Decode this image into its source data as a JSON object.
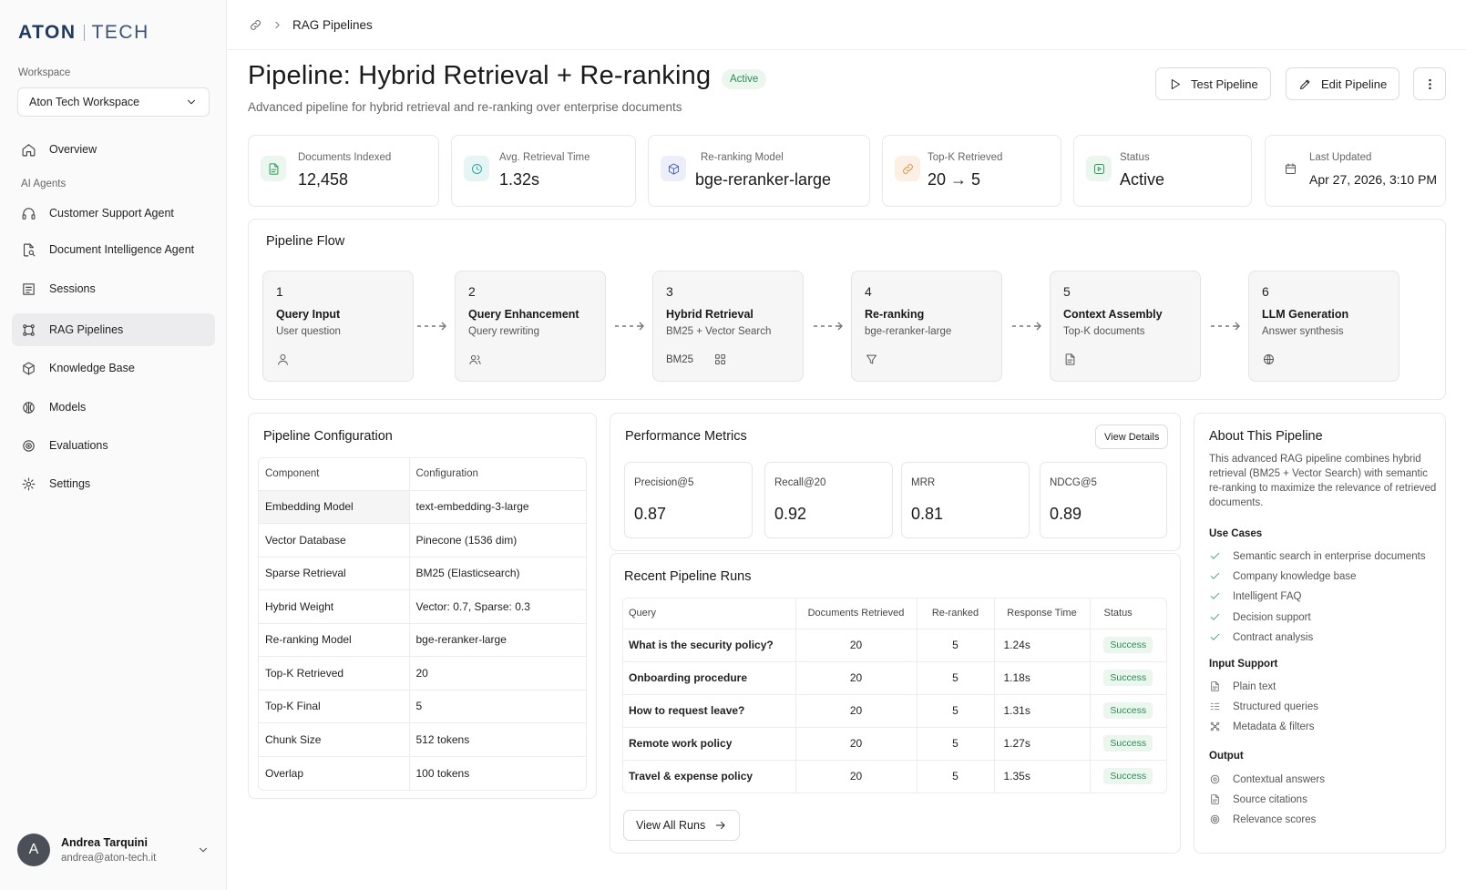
{
  "brand": {
    "part1": "ATON",
    "part2": "TECH",
    "color": "#1f3a5f"
  },
  "sidebar": {
    "workspace_label": "Workspace",
    "workspace_value": "Aton Tech Workspace",
    "overview": "Overview",
    "group_label": "AI Agents",
    "items": [
      {
        "label": "Customer Support Agent",
        "icon": "headset-icon"
      },
      {
        "label": "Document Intelligence Agent",
        "icon": "document-search-icon"
      },
      {
        "label": "Sessions",
        "icon": "sessions-icon"
      },
      {
        "label": "RAG Pipelines",
        "icon": "pipeline-icon",
        "active": true
      },
      {
        "label": "Knowledge Base",
        "icon": "cube-icon"
      },
      {
        "label": "Models",
        "icon": "brain-icon"
      },
      {
        "label": "Evaluations",
        "icon": "target-icon"
      },
      {
        "label": "Settings",
        "icon": "gear-icon"
      }
    ],
    "user": {
      "initial": "A",
      "name": "Andrea Tarquini",
      "email": "andrea@aton-tech.it"
    }
  },
  "breadcrumb": {
    "current": "RAG Pipelines"
  },
  "header": {
    "title": "Pipeline: Hybrid Retrieval + Re-ranking",
    "badge": "Active",
    "subtitle": "Advanced pipeline for hybrid retrieval and re-ranking over enterprise documents",
    "test_button": "Test Pipeline",
    "edit_button": "Edit Pipeline"
  },
  "stats": [
    {
      "label": "Documents Indexed",
      "value": "12,458",
      "color": "#2e9a5c"
    },
    {
      "label": "Avg. Retrieval Time",
      "value": "1.32s",
      "color": "#2aa5a0"
    },
    {
      "label": "Re-ranking Model",
      "value": "bge-reranker-large",
      "color": "#4a63c9"
    },
    {
      "label": "Top-K Retrieved",
      "value": "20 → 5",
      "color": "#e08a3c"
    },
    {
      "label": "Status",
      "value": "Active",
      "color": "#2e9a5c"
    },
    {
      "label": "Last Updated",
      "value": "Apr 27, 2026, 3:10 PM",
      "color": "#555555"
    }
  ],
  "flow": {
    "title": "Pipeline Flow",
    "steps": [
      {
        "num": "1",
        "name": "Query Input",
        "desc": "User question",
        "foot": ""
      },
      {
        "num": "2",
        "name": "Query Enhancement",
        "desc": "Query rewriting",
        "foot": ""
      },
      {
        "num": "3",
        "name": "Hybrid Retrieval",
        "desc": "BM25 + Vector Search",
        "foot": "BM25"
      },
      {
        "num": "4",
        "name": "Re-ranking",
        "desc": "bge-reranker-large",
        "foot": ""
      },
      {
        "num": "5",
        "name": "Context Assembly",
        "desc": "Top-K documents",
        "foot": ""
      },
      {
        "num": "6",
        "name": "LLM Generation",
        "desc": "Answer synthesis",
        "foot": ""
      }
    ]
  },
  "config": {
    "title": "Pipeline Configuration",
    "col1": "Component",
    "col2": "Configuration",
    "rows": [
      [
        "Embedding Model",
        "text-embedding-3-large"
      ],
      [
        "Vector Database",
        "Pinecone (1536 dim)"
      ],
      [
        "Sparse Retrieval",
        "BM25 (Elasticsearch)"
      ],
      [
        "Hybrid Weight",
        "Vector: 0.7, Sparse: 0.3"
      ],
      [
        "Re-ranking Model",
        "bge-reranker-large"
      ],
      [
        "Top-K Retrieved",
        "20"
      ],
      [
        "Top-K Final",
        "5"
      ],
      [
        "Chunk Size",
        "512 tokens"
      ],
      [
        "Overlap",
        "100 tokens"
      ]
    ]
  },
  "metrics": {
    "title": "Performance Metrics",
    "details_button": "View Details",
    "items": [
      {
        "label": "Precision@5",
        "value": "0.87"
      },
      {
        "label": "Recall@20",
        "value": "0.92"
      },
      {
        "label": "MRR",
        "value": "0.81"
      },
      {
        "label": "NDCG@5",
        "value": "0.89"
      }
    ]
  },
  "runs": {
    "title": "Recent Pipeline Runs",
    "headers": [
      "Query",
      "Documents Retrieved",
      "Re-ranked",
      "Response Time",
      "Status"
    ],
    "rows": [
      [
        "What is the security policy?",
        "20",
        "5",
        "1.24s",
        "Success"
      ],
      [
        "Onboarding procedure",
        "20",
        "5",
        "1.18s",
        "Success"
      ],
      [
        "How to request leave?",
        "20",
        "5",
        "1.31s",
        "Success"
      ],
      [
        "Remote work policy",
        "20",
        "5",
        "1.27s",
        "Success"
      ],
      [
        "Travel & expense policy",
        "20",
        "5",
        "1.35s",
        "Success"
      ]
    ],
    "view_all": "View All Runs"
  },
  "about": {
    "title": "About This Pipeline",
    "text": "This advanced RAG pipeline combines hybrid retrieval (BM25 + Vector Search) with semantic re-ranking to maximize the relevance of retrieved documents.",
    "use_cases_title": "Use Cases",
    "use_cases": [
      "Semantic search in enterprise documents",
      "Company knowledge base",
      "Intelligent FAQ",
      "Decision support",
      "Contract analysis"
    ],
    "input_title": "Input Support",
    "inputs": [
      "Plain text",
      "Structured queries",
      "Metadata & filters"
    ],
    "output_title": "Output",
    "outputs": [
      "Contextual answers",
      "Source citations",
      "Relevance scores"
    ]
  }
}
